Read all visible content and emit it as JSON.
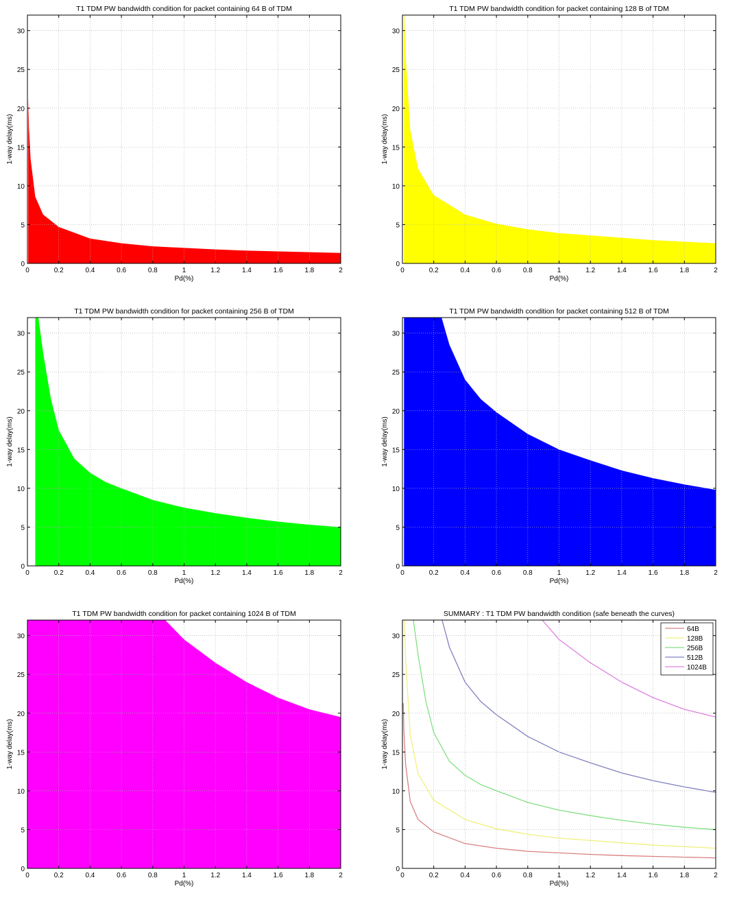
{
  "chart_data": [
    {
      "type": "area",
      "title": "T1 TDM PW bandwidth condition for packet containing 64 B of TDM",
      "xlabel": "Pd(%)",
      "ylabel": "1-way delay(ms)",
      "xlim": [
        0,
        2
      ],
      "ylim": [
        0,
        32
      ],
      "xticks": [
        "0",
        "0.2",
        "0.4",
        "0.6",
        "0.8",
        "1",
        "1.2",
        "1.4",
        "1.6",
        "1.8",
        "2"
      ],
      "yticks": [
        "0",
        "5",
        "10",
        "15",
        "20",
        "25",
        "30"
      ],
      "grid": true,
      "color": "#ff0000",
      "series": [
        {
          "x": [
            0.005,
            0.01,
            0.02,
            0.05,
            0.1,
            0.2,
            0.4,
            0.6,
            0.8,
            1.0,
            1.2,
            1.4,
            1.6,
            1.8,
            2.0
          ],
          "y": [
            21.3,
            17.5,
            13.5,
            8.6,
            6.3,
            4.7,
            3.2,
            2.6,
            2.2,
            2.0,
            1.8,
            1.65,
            1.55,
            1.45,
            1.35
          ]
        }
      ]
    },
    {
      "type": "area",
      "title": "T1 TDM PW bandwidth condition for packet containing 128 B of TDM",
      "xlabel": "Pd(%)",
      "ylabel": "1-way delay(ms)",
      "xlim": [
        0,
        2
      ],
      "ylim": [
        0,
        32
      ],
      "xticks": [
        "0",
        "0.2",
        "0.4",
        "0.6",
        "0.8",
        "1",
        "1.2",
        "1.4",
        "1.6",
        "1.8",
        "2"
      ],
      "yticks": [
        "0",
        "5",
        "10",
        "15",
        "20",
        "25",
        "30"
      ],
      "grid": true,
      "color": "#ffff00",
      "series": [
        {
          "x": [
            0.01,
            0.02,
            0.05,
            0.1,
            0.2,
            0.4,
            0.6,
            0.8,
            1.0,
            1.2,
            1.4,
            1.6,
            1.8,
            2.0
          ],
          "y": [
            34,
            27,
            17.2,
            12.2,
            8.8,
            6.3,
            5.1,
            4.4,
            3.9,
            3.6,
            3.3,
            3.0,
            2.8,
            2.6
          ]
        }
      ]
    },
    {
      "type": "area",
      "title": "T1 TDM PW bandwidth condition for packet containing 256 B of TDM",
      "xlabel": "Pd(%)",
      "ylabel": "1-way delay(ms)",
      "xlim": [
        0,
        2
      ],
      "ylim": [
        0,
        32
      ],
      "xticks": [
        "0",
        "0.2",
        "0.4",
        "0.6",
        "0.8",
        "1",
        "1.2",
        "1.4",
        "1.6",
        "1.8",
        "2"
      ],
      "yticks": [
        "0",
        "5",
        "10",
        "15",
        "20",
        "25",
        "30"
      ],
      "grid": true,
      "color": "#00ff00",
      "series": [
        {
          "x": [
            0.05,
            0.07,
            0.1,
            0.15,
            0.2,
            0.3,
            0.4,
            0.5,
            0.6,
            0.8,
            1.0,
            1.2,
            1.4,
            1.6,
            1.8,
            2.0
          ],
          "y": [
            34,
            32,
            27.5,
            21.5,
            17.5,
            13.8,
            12.0,
            10.8,
            10.0,
            8.5,
            7.5,
            6.8,
            6.2,
            5.7,
            5.3,
            5.0
          ]
        }
      ]
    },
    {
      "type": "area",
      "title": "T1 TDM PW bandwidth condition for packet containing 512 B of TDM",
      "xlabel": "Pd(%)",
      "ylabel": "1-way delay(ms)",
      "xlim": [
        0,
        2
      ],
      "ylim": [
        0,
        32
      ],
      "xticks": [
        "0",
        "0.2",
        "0.4",
        "0.6",
        "0.8",
        "1",
        "1.2",
        "1.4",
        "1.6",
        "1.8",
        "2"
      ],
      "yticks": [
        "0",
        "5",
        "10",
        "15",
        "20",
        "25",
        "30"
      ],
      "grid": true,
      "color": "#0000ff",
      "series": [
        {
          "x": [
            0.01,
            0.25,
            0.3,
            0.4,
            0.5,
            0.6,
            0.8,
            1.0,
            1.2,
            1.4,
            1.6,
            1.8,
            2.0
          ],
          "y": [
            32,
            32,
            28.5,
            24.0,
            21.5,
            19.8,
            17.0,
            15.0,
            13.6,
            12.3,
            11.3,
            10.5,
            9.8
          ]
        }
      ]
    },
    {
      "type": "area",
      "title": "T1 TDM PW bandwidth condition for packet containing 1024 B of TDM",
      "xlabel": "Pd(%)",
      "ylabel": "1-way delay(ms)",
      "xlim": [
        0,
        2
      ],
      "ylim": [
        0,
        32
      ],
      "xticks": [
        "0",
        "0.2",
        "0.4",
        "0.6",
        "0.8",
        "1",
        "1.2",
        "1.4",
        "1.6",
        "1.8",
        "2"
      ],
      "yticks": [
        "0",
        "5",
        "10",
        "15",
        "20",
        "25",
        "30"
      ],
      "grid": true,
      "color": "#ff00ff",
      "series": [
        {
          "x": [
            0.0,
            0.88,
            1.0,
            1.2,
            1.4,
            1.6,
            1.8,
            2.0
          ],
          "y": [
            32,
            32,
            29.5,
            26.5,
            24.0,
            22.0,
            20.5,
            19.5
          ]
        }
      ]
    },
    {
      "type": "line",
      "title": "SUMMARY : T1 TDM PW bandwidth condition (safe beneath the curves)",
      "xlabel": "Pd(%)",
      "ylabel": "1-way delay(ms)",
      "xlim": [
        0,
        2
      ],
      "ylim": [
        0,
        32
      ],
      "xticks": [
        "0",
        "0.2",
        "0.4",
        "0.6",
        "0.8",
        "1",
        "1.2",
        "1.4",
        "1.6",
        "1.8",
        "2"
      ],
      "yticks": [
        "0",
        "5",
        "10",
        "15",
        "20",
        "25",
        "30"
      ],
      "grid": true,
      "legend_position": "top-right",
      "series": [
        {
          "name": "64B",
          "color": "#d98080",
          "x": [
            0.005,
            0.01,
            0.02,
            0.05,
            0.1,
            0.2,
            0.4,
            0.6,
            0.8,
            1.0,
            1.2,
            1.4,
            1.6,
            1.8,
            2.0
          ],
          "y": [
            21.3,
            17.5,
            13.5,
            8.6,
            6.3,
            4.7,
            3.2,
            2.6,
            2.2,
            2.0,
            1.8,
            1.65,
            1.55,
            1.45,
            1.35
          ]
        },
        {
          "name": "128B",
          "color": "#f0f080",
          "x": [
            0.01,
            0.02,
            0.05,
            0.1,
            0.2,
            0.4,
            0.6,
            0.8,
            1.0,
            1.2,
            1.4,
            1.6,
            1.8,
            2.0
          ],
          "y": [
            34,
            27,
            17.2,
            12.2,
            8.8,
            6.3,
            5.1,
            4.4,
            3.9,
            3.6,
            3.3,
            3.0,
            2.8,
            2.6
          ]
        },
        {
          "name": "256B",
          "color": "#80e080",
          "x": [
            0.05,
            0.07,
            0.1,
            0.15,
            0.2,
            0.3,
            0.4,
            0.5,
            0.6,
            0.8,
            1.0,
            1.2,
            1.4,
            1.6,
            1.8,
            2.0
          ],
          "y": [
            34,
            32,
            27.5,
            21.5,
            17.5,
            13.8,
            12.0,
            10.8,
            10.0,
            8.5,
            7.5,
            6.8,
            6.2,
            5.7,
            5.3,
            5.0
          ]
        },
        {
          "name": "512B",
          "color": "#8080c0",
          "x": [
            0.24,
            0.3,
            0.4,
            0.5,
            0.6,
            0.8,
            1.0,
            1.2,
            1.4,
            1.6,
            1.8,
            2.0
          ],
          "y": [
            33,
            28.5,
            24.0,
            21.5,
            19.8,
            17.0,
            15.0,
            13.6,
            12.3,
            11.3,
            10.5,
            9.8
          ]
        },
        {
          "name": "1024B",
          "color": "#e080e0",
          "x": [
            0.85,
            1.0,
            1.2,
            1.4,
            1.6,
            1.8,
            2.0
          ],
          "y": [
            33,
            29.5,
            26.5,
            24.0,
            22.0,
            20.5,
            19.5
          ]
        }
      ]
    }
  ]
}
